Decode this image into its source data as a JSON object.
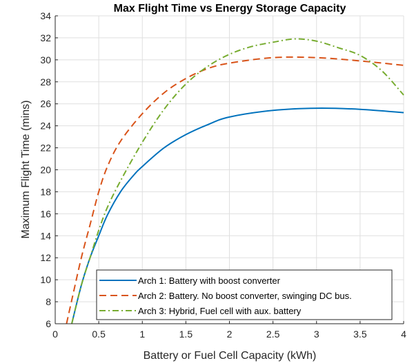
{
  "chart_data": {
    "type": "line",
    "title": "Max Flight Time vs Energy Storage Capacity",
    "xlabel": "Battery or Fuel Cell Capacity (kWh)",
    "ylabel": "Maximum Flight Time (mins)",
    "xlim": [
      0,
      4
    ],
    "ylim": [
      6,
      34
    ],
    "xticks": [
      "0",
      "0.5",
      "1",
      "1.5",
      "2",
      "2.5",
      "3",
      "3.5",
      "4"
    ],
    "yticks": [
      "6",
      "8",
      "10",
      "12",
      "14",
      "16",
      "18",
      "20",
      "22",
      "24",
      "26",
      "28",
      "30",
      "32",
      "34"
    ],
    "grid": true,
    "legend_position": "bottom-right",
    "series": [
      {
        "name": "Arch 1: Battery with boost converter",
        "color": "#0072BD",
        "style": "solid",
        "x": [
          0.19,
          0.3,
          0.4,
          0.5,
          0.6,
          0.75,
          0.9,
          1,
          1.25,
          1.5,
          1.75,
          2,
          2.5,
          3,
          3.5,
          4
        ],
        "y": [
          6,
          9.5,
          12,
          14,
          15.9,
          18,
          19.5,
          20.3,
          22,
          23.2,
          24.1,
          24.8,
          25.4,
          25.6,
          25.5,
          25.2
        ]
      },
      {
        "name": "Arch 2: Battery. No boost converter, swinging DC bus.",
        "color": "#D95319",
        "style": "dashed",
        "x": [
          0.13,
          0.2,
          0.3,
          0.4,
          0.5,
          0.6,
          0.75,
          1,
          1.25,
          1.5,
          1.75,
          2,
          2.5,
          3,
          3.5,
          4
        ],
        "y": [
          6,
          8.5,
          12,
          15,
          18,
          20.3,
          22.6,
          25.1,
          27,
          28.3,
          29.2,
          29.7,
          30.2,
          30.2,
          29.9,
          29.5
        ]
      },
      {
        "name": "Arch 3: Hybrid, Fuel cell with aux. battery",
        "color": "#77AC30",
        "style": "dashdot",
        "x": [
          0.19,
          0.3,
          0.4,
          0.5,
          0.6,
          0.75,
          1,
          1.25,
          1.5,
          1.75,
          2,
          2.25,
          2.5,
          2.75,
          3,
          3.25,
          3.5,
          3.75,
          4
        ],
        "y": [
          6,
          9.5,
          12,
          14.5,
          16.6,
          19,
          22.5,
          25.5,
          27.8,
          29.4,
          30.5,
          31.2,
          31.6,
          31.9,
          31.7,
          31.1,
          30.4,
          29,
          26.8
        ]
      }
    ]
  }
}
